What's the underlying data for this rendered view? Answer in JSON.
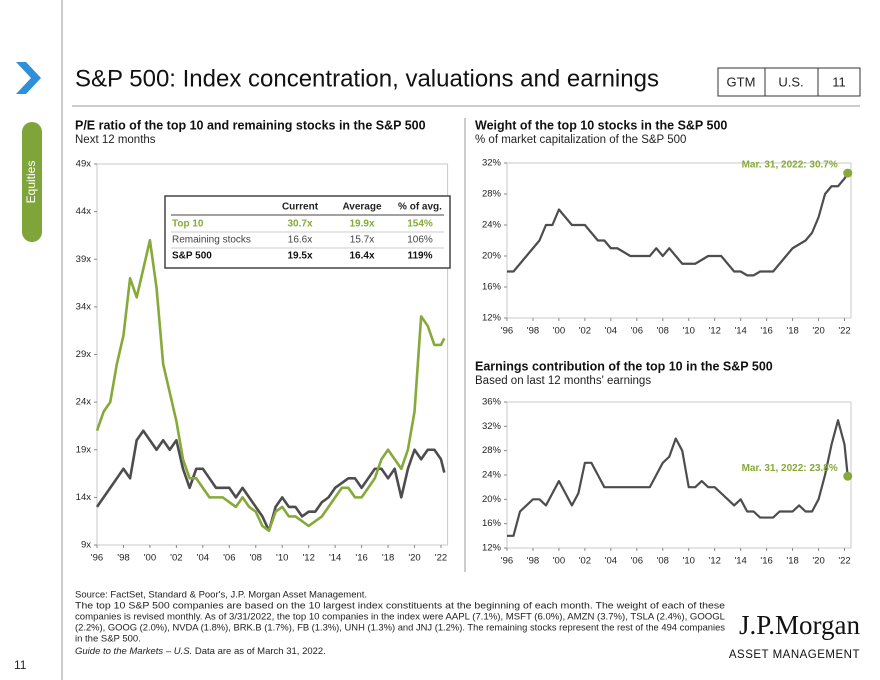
{
  "header": {
    "title": "S&P 500: Index concentration, valuations and earnings",
    "tags": [
      "GTM",
      "U.S.",
      "11"
    ],
    "section": "Equities",
    "page_number": "11"
  },
  "footer": {
    "lines": [
      "Source: FactSet, Standard & Poor's, J.P. Morgan Asset Management.",
      "The top 10 S&P 500 companies are based on the 10 largest index constituents at the beginning of each month. The weight of each of these",
      "companies is revised monthly. As of 3/31/2022, the top 10 companies in the index were AAPL (7.1%), MSFT (6.0%), AMZN (3.7%), TSLA (2.4%), GOOGL",
      "(2.2%), GOOG (2.0%), NVDA (1.8%), BRK.B (1.7%), FB (1.3%), UNH (1.3%) and JNJ (1.2%). The remaining stocks represent the rest of the 494 companies",
      "in the S&P 500."
    ],
    "guide": "Guide to the Markets – U.S.",
    "data_date": " Data are as of March 31, 2022."
  },
  "logo": {
    "name": "J.P.Morgan",
    "sub": "ASSET MANAGEMENT"
  },
  "chart_data": [
    {
      "type": "line",
      "title": "P/E ratio of the top 10 and remaining stocks in the S&P 500",
      "subtitle": "Next 12 months",
      "x": [
        1996,
        1996.5,
        1997,
        1997.5,
        1998,
        1998.5,
        1999,
        1999.5,
        2000,
        2000.5,
        2001,
        2001.5,
        2002,
        2002.5,
        2003,
        2003.5,
        2004,
        2004.5,
        2005,
        2005.5,
        2006,
        2006.5,
        2007,
        2007.5,
        2008,
        2008.5,
        2009,
        2009.5,
        2010,
        2010.5,
        2011,
        2011.5,
        2012,
        2012.5,
        2013,
        2013.5,
        2014,
        2014.5,
        2015,
        2015.5,
        2016,
        2016.5,
        2017,
        2017.5,
        2018,
        2018.5,
        2019,
        2019.5,
        2020,
        2020.5,
        2021,
        2021.5,
        2022,
        2022.25
      ],
      "series": [
        {
          "name": "Top 10",
          "color": "#86a93a",
          "values": [
            21,
            23,
            24,
            28,
            31,
            37,
            35,
            38,
            41,
            36,
            28,
            25,
            22,
            18,
            16,
            16,
            15,
            14,
            14,
            14,
            13.5,
            13,
            14,
            13,
            12.5,
            11,
            10.5,
            12.5,
            13,
            12,
            12,
            11.5,
            11,
            11.5,
            12,
            13,
            14,
            15,
            15,
            14,
            14,
            15,
            16,
            18,
            19,
            18,
            17,
            19,
            23,
            33,
            32,
            30,
            30,
            30.7
          ]
        },
        {
          "name": "Remaining stocks",
          "color": "#4d4d4f",
          "values": [
            13,
            14,
            15,
            16,
            17,
            16,
            20,
            21,
            20,
            19,
            20,
            19,
            20,
            17,
            15,
            17,
            17,
            16,
            15,
            15,
            15,
            14,
            15,
            14,
            13,
            12,
            10.5,
            13,
            14,
            13,
            13,
            12,
            12.5,
            12.5,
            13.5,
            14,
            15,
            15.5,
            16,
            16,
            15,
            16,
            17,
            17,
            16,
            17,
            14,
            17,
            19,
            18,
            19,
            19,
            18,
            16.6
          ]
        }
      ],
      "xlim": [
        1996,
        2022.5
      ],
      "ylim": [
        9,
        49
      ],
      "xticks": [
        {
          "value": 1996,
          "label": "'96"
        },
        {
          "value": 1998,
          "label": "'98"
        },
        {
          "value": 2000,
          "label": "'00"
        },
        {
          "value": 2002,
          "label": "'02"
        },
        {
          "value": 2004,
          "label": "'04"
        },
        {
          "value": 2006,
          "label": "'06"
        },
        {
          "value": 2008,
          "label": "'08"
        },
        {
          "value": 2010,
          "label": "'10"
        },
        {
          "value": 2012,
          "label": "'12"
        },
        {
          "value": 2014,
          "label": "'14"
        },
        {
          "value": 2016,
          "label": "'16"
        },
        {
          "value": 2018,
          "label": "'18"
        },
        {
          "value": 2020,
          "label": "'20"
        },
        {
          "value": 2022,
          "label": "'22"
        }
      ],
      "yticks": [
        {
          "value": 9,
          "label": "9x"
        },
        {
          "value": 14,
          "label": "14x"
        },
        {
          "value": 19,
          "label": "19x"
        },
        {
          "value": 24,
          "label": "24x"
        },
        {
          "value": 29,
          "label": "29x"
        },
        {
          "value": 34,
          "label": "34x"
        },
        {
          "value": 39,
          "label": "39x"
        },
        {
          "value": 44,
          "label": "44x"
        },
        {
          "value": 49,
          "label": "49x"
        }
      ],
      "table": {
        "columns": [
          "Current",
          "Average",
          "% of avg."
        ],
        "rows": [
          [
            "30.7x",
            "19.9x",
            "154%"
          ],
          [
            "16.6x",
            "15.7x",
            "106%"
          ]
        ],
        "total": {
          "label": "S&P 500",
          "cells": [
            "19.5x",
            "16.4x",
            "119%"
          ]
        }
      }
    },
    {
      "type": "line",
      "title": "Weight of the top 10 stocks in the S&P 500",
      "subtitle": "% of market capitalization of the S&P 500",
      "x": [
        1996,
        1996.5,
        1997,
        1997.5,
        1998,
        1998.5,
        1999,
        1999.5,
        2000,
        2000.5,
        2001,
        2001.5,
        2002,
        2002.5,
        2003,
        2003.5,
        2004,
        2004.5,
        2005,
        2005.5,
        2006,
        2006.5,
        2007,
        2007.5,
        2008,
        2008.5,
        2009,
        2009.5,
        2010,
        2010.5,
        2011,
        2011.5,
        2012,
        2012.5,
        2013,
        2013.5,
        2014,
        2014.5,
        2015,
        2015.5,
        2016,
        2016.5,
        2017,
        2017.5,
        2018,
        2018.5,
        2019,
        2019.5,
        2020,
        2020.5,
        2021,
        2021.5,
        2022,
        2022.25
      ],
      "values": [
        18,
        18,
        19,
        20,
        21,
        22,
        24,
        24,
        26,
        25,
        24,
        24,
        24,
        23,
        22,
        22,
        21,
        21,
        20.5,
        20,
        20,
        20,
        20,
        21,
        20,
        21,
        20,
        19,
        19,
        19,
        19.5,
        20,
        20,
        20,
        19,
        18,
        18,
        17.5,
        17.5,
        18,
        18,
        18,
        19,
        20,
        21,
        21.5,
        22,
        23,
        25,
        28,
        29,
        29,
        30,
        30.7
      ],
      "color": "#4d4d4f",
      "marker_color": "#86a93a",
      "annotation": "Mar. 31, 2022: 30.7%",
      "xlim": [
        1996,
        2022.5
      ],
      "ylim": [
        12,
        32
      ],
      "xticks": [
        {
          "value": 1996,
          "label": "'96"
        },
        {
          "value": 1998,
          "label": "'98"
        },
        {
          "value": 2000,
          "label": "'00"
        },
        {
          "value": 2002,
          "label": "'02"
        },
        {
          "value": 2004,
          "label": "'04"
        },
        {
          "value": 2006,
          "label": "'06"
        },
        {
          "value": 2008,
          "label": "'08"
        },
        {
          "value": 2010,
          "label": "'10"
        },
        {
          "value": 2012,
          "label": "'12"
        },
        {
          "value": 2014,
          "label": "'14"
        },
        {
          "value": 2016,
          "label": "'16"
        },
        {
          "value": 2018,
          "label": "'18"
        },
        {
          "value": 2020,
          "label": "'20"
        },
        {
          "value": 2022,
          "label": "'22"
        }
      ],
      "yticks": [
        {
          "value": 12,
          "label": "12%"
        },
        {
          "value": 16,
          "label": "16%"
        },
        {
          "value": 20,
          "label": "20%"
        },
        {
          "value": 24,
          "label": "24%"
        },
        {
          "value": 28,
          "label": "28%"
        },
        {
          "value": 32,
          "label": "32%"
        }
      ]
    },
    {
      "type": "line",
      "title": "Earnings contribution of the top 10 in the S&P 500",
      "subtitle": "Based on last 12 months' earnings",
      "x": [
        1996,
        1996.5,
        1997,
        1997.5,
        1998,
        1998.5,
        1999,
        1999.5,
        2000,
        2000.5,
        2001,
        2001.5,
        2002,
        2002.5,
        2003,
        2003.5,
        2004,
        2004.5,
        2005,
        2005.5,
        2006,
        2006.5,
        2007,
        2007.5,
        2008,
        2008.5,
        2009,
        2009.5,
        2010,
        2010.5,
        2011,
        2011.5,
        2012,
        2012.5,
        2013,
        2013.5,
        2014,
        2014.5,
        2015,
        2015.5,
        2016,
        2016.5,
        2017,
        2017.5,
        2018,
        2018.5,
        2019,
        2019.5,
        2020,
        2020.5,
        2021,
        2021.5,
        2022,
        2022.25
      ],
      "values": [
        14,
        14,
        18,
        19,
        20,
        20,
        19,
        21,
        23,
        21,
        19,
        21,
        26,
        26,
        24,
        22,
        22,
        22,
        22,
        22,
        22,
        22,
        22,
        24,
        26,
        27,
        30,
        28,
        22,
        22,
        23,
        22,
        22,
        21,
        20,
        19,
        20,
        18,
        18,
        17,
        17,
        17,
        18,
        18,
        18,
        19,
        18,
        18,
        20,
        24,
        29,
        33,
        29,
        23.8
      ],
      "color": "#4d4d4f",
      "marker_color": "#86a93a",
      "annotation": "Mar. 31, 2022: 23.8%",
      "xlim": [
        1996,
        2022.5
      ],
      "ylim": [
        12,
        36
      ],
      "xticks": [
        {
          "value": 1996,
          "label": "'96"
        },
        {
          "value": 1998,
          "label": "'98"
        },
        {
          "value": 2000,
          "label": "'00"
        },
        {
          "value": 2002,
          "label": "'02"
        },
        {
          "value": 2004,
          "label": "'04"
        },
        {
          "value": 2006,
          "label": "'06"
        },
        {
          "value": 2008,
          "label": "'08"
        },
        {
          "value": 2010,
          "label": "'10"
        },
        {
          "value": 2012,
          "label": "'12"
        },
        {
          "value": 2014,
          "label": "'14"
        },
        {
          "value": 2016,
          "label": "'16"
        },
        {
          "value": 2018,
          "label": "'18"
        },
        {
          "value": 2020,
          "label": "'20"
        },
        {
          "value": 2022,
          "label": "'22"
        }
      ],
      "yticks": [
        {
          "value": 12,
          "label": "12%"
        },
        {
          "value": 16,
          "label": "16%"
        },
        {
          "value": 20,
          "label": "20%"
        },
        {
          "value": 24,
          "label": "24%"
        },
        {
          "value": 28,
          "label": "28%"
        },
        {
          "value": 32,
          "label": "32%"
        },
        {
          "value": 36,
          "label": "36%"
        }
      ]
    }
  ]
}
